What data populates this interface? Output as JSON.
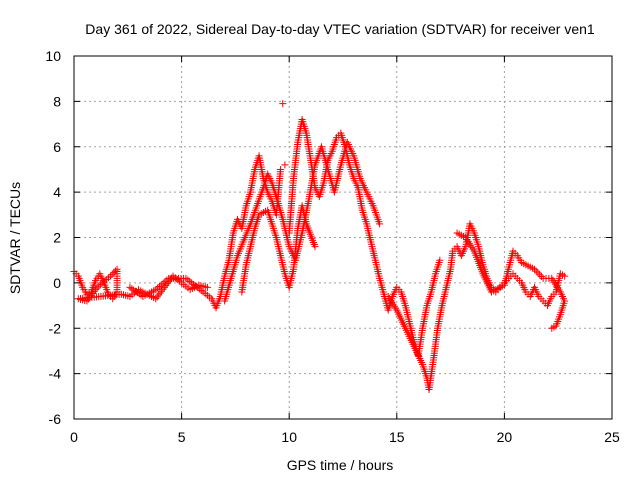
{
  "chart_data": {
    "type": "scatter",
    "title": "Day 361 of 2022, Sidereal Day-to-day VTEC variation (SDTVAR) for receiver ven1",
    "xlabel": "GPS time / hours",
    "ylabel": "SDTVAR / TECUs",
    "xlim": [
      0,
      25
    ],
    "ylim": [
      -6,
      10
    ],
    "x_ticks": [
      0,
      5,
      10,
      15,
      20,
      25
    ],
    "y_ticks": [
      -6,
      -4,
      -2,
      0,
      2,
      4,
      6,
      8,
      10
    ],
    "grid": true,
    "marker": "+",
    "series_color": "#ff0000",
    "series": [
      {
        "name": "ven1",
        "points": [
          [
            0.0,
            0.5
          ],
          [
            0.2,
            0.3
          ],
          [
            0.4,
            -0.2
          ],
          [
            0.6,
            -0.5
          ],
          [
            0.8,
            -0.4
          ],
          [
            1.0,
            0.1
          ],
          [
            1.2,
            0.4
          ],
          [
            1.4,
            0.0
          ],
          [
            1.6,
            -0.5
          ],
          [
            1.8,
            -0.7
          ],
          [
            2.0,
            -0.4
          ],
          [
            2.0,
            0.6
          ],
          [
            1.7,
            0.3
          ],
          [
            1.3,
            0.0
          ],
          [
            1.0,
            -0.3
          ],
          [
            0.6,
            -0.8
          ],
          [
            0.2,
            -0.7
          ],
          [
            2.2,
            -0.5
          ],
          [
            2.6,
            -0.6
          ],
          [
            3.0,
            -0.3
          ],
          [
            3.4,
            -0.5
          ],
          [
            3.8,
            -0.7
          ],
          [
            4.2,
            -0.2
          ],
          [
            4.6,
            0.3
          ],
          [
            5.0,
            0.0
          ],
          [
            5.4,
            -0.3
          ],
          [
            5.8,
            -0.1
          ],
          [
            6.2,
            -0.2
          ],
          [
            2.6,
            -0.2
          ],
          [
            3.2,
            -0.6
          ],
          [
            3.8,
            -0.3
          ],
          [
            4.4,
            0.2
          ],
          [
            5.2,
            0.2
          ],
          [
            6.0,
            -0.4
          ],
          [
            6.4,
            -0.7
          ],
          [
            6.6,
            -1.1
          ],
          [
            6.8,
            -0.6
          ],
          [
            7.0,
            0.3
          ],
          [
            7.2,
            1.0
          ],
          [
            7.4,
            2.2
          ],
          [
            7.6,
            2.8
          ],
          [
            7.8,
            2.4
          ],
          [
            8.0,
            3.4
          ],
          [
            8.2,
            4.0
          ],
          [
            8.4,
            5.0
          ],
          [
            8.6,
            5.6
          ],
          [
            8.8,
            4.6
          ],
          [
            9.0,
            4.0
          ],
          [
            9.2,
            3.6
          ],
          [
            9.4,
            3.0
          ],
          [
            9.6,
            5.0
          ],
          [
            9.7,
            7.9
          ],
          [
            9.8,
            5.2
          ],
          [
            10.0,
            2.2
          ],
          [
            10.2,
            4.6
          ],
          [
            10.4,
            6.2
          ],
          [
            10.6,
            7.2
          ],
          [
            10.8,
            6.6
          ],
          [
            11.0,
            5.4
          ],
          [
            11.2,
            4.2
          ],
          [
            11.4,
            3.8
          ],
          [
            11.6,
            4.4
          ],
          [
            11.8,
            5.4
          ],
          [
            12.0,
            5.8
          ],
          [
            12.2,
            6.4
          ],
          [
            12.4,
            6.6
          ],
          [
            12.6,
            6.0
          ],
          [
            12.8,
            5.2
          ],
          [
            13.0,
            4.6
          ],
          [
            13.2,
            4.2
          ],
          [
            13.4,
            3.2
          ],
          [
            13.6,
            2.6
          ],
          [
            13.8,
            1.8
          ],
          [
            14.0,
            1.0
          ],
          [
            14.2,
            0.2
          ],
          [
            14.4,
            -0.5
          ],
          [
            14.6,
            -1.2
          ],
          [
            14.8,
            -0.6
          ],
          [
            15.0,
            -0.2
          ],
          [
            15.2,
            -0.4
          ],
          [
            15.4,
            -1.0
          ],
          [
            15.6,
            -1.8
          ],
          [
            15.8,
            -2.6
          ],
          [
            16.0,
            -3.2
          ],
          [
            16.2,
            -2.0
          ],
          [
            16.4,
            -1.0
          ],
          [
            16.6,
            -0.4
          ],
          [
            16.8,
            0.4
          ],
          [
            17.0,
            1.0
          ],
          [
            7.0,
            -0.8
          ],
          [
            7.3,
            0.2
          ],
          [
            7.6,
            1.2
          ],
          [
            7.9,
            1.9
          ],
          [
            8.2,
            2.6
          ],
          [
            8.5,
            3.4
          ],
          [
            8.8,
            4.2
          ],
          [
            9.0,
            4.8
          ],
          [
            9.2,
            4.4
          ],
          [
            9.4,
            3.8
          ],
          [
            9.7,
            2.8
          ],
          [
            10.0,
            1.6
          ],
          [
            10.3,
            1.0
          ],
          [
            10.6,
            2.2
          ],
          [
            10.9,
            3.6
          ],
          [
            11.2,
            5.2
          ],
          [
            11.5,
            6.0
          ],
          [
            11.8,
            5.0
          ],
          [
            12.1,
            4.0
          ],
          [
            12.4,
            5.2
          ],
          [
            12.7,
            6.2
          ],
          [
            13.0,
            5.6
          ],
          [
            13.3,
            4.6
          ],
          [
            13.6,
            4.0
          ],
          [
            13.9,
            3.4
          ],
          [
            14.2,
            2.6
          ],
          [
            7.8,
            -0.4
          ],
          [
            8.0,
            0.8
          ],
          [
            8.2,
            1.6
          ],
          [
            8.4,
            2.4
          ],
          [
            8.6,
            3.0
          ],
          [
            9.0,
            3.2
          ],
          [
            9.4,
            2.0
          ],
          [
            9.6,
            1.2
          ],
          [
            9.8,
            0.4
          ],
          [
            10.0,
            -0.2
          ],
          [
            10.2,
            0.6
          ],
          [
            10.4,
            2.4
          ],
          [
            10.6,
            3.4
          ],
          [
            10.8,
            2.6
          ],
          [
            11.2,
            1.6
          ],
          [
            14.6,
            -0.6
          ],
          [
            15.0,
            -1.2
          ],
          [
            15.4,
            -2.0
          ],
          [
            15.8,
            -2.8
          ],
          [
            16.2,
            -3.6
          ],
          [
            16.4,
            -4.2
          ],
          [
            16.5,
            -4.7
          ],
          [
            16.7,
            -3.4
          ],
          [
            16.9,
            -2.0
          ],
          [
            17.1,
            -1.0
          ],
          [
            17.3,
            -0.2
          ],
          [
            17.5,
            0.6
          ],
          [
            17.6,
            1.4
          ],
          [
            17.8,
            1.6
          ],
          [
            18.0,
            1.2
          ],
          [
            18.2,
            1.6
          ],
          [
            18.4,
            2.6
          ],
          [
            18.6,
            2.2
          ],
          [
            18.8,
            1.6
          ],
          [
            19.0,
            0.8
          ],
          [
            19.2,
            0.2
          ],
          [
            19.4,
            -0.2
          ],
          [
            19.6,
            -0.4
          ],
          [
            19.8,
            -0.2
          ],
          [
            20.0,
            0.0
          ],
          [
            20.2,
            0.2
          ],
          [
            20.4,
            0.4
          ],
          [
            20.6,
            0.2
          ],
          [
            20.8,
            0.0
          ],
          [
            21.0,
            -0.4
          ],
          [
            21.2,
            -0.6
          ],
          [
            21.4,
            -0.2
          ],
          [
            21.6,
            -0.6
          ],
          [
            21.8,
            -0.8
          ],
          [
            22.0,
            -1.0
          ],
          [
            22.2,
            -0.6
          ],
          [
            22.4,
            -0.4
          ],
          [
            22.6,
            0.4
          ],
          [
            22.8,
            0.3
          ],
          [
            17.8,
            2.2
          ],
          [
            18.2,
            2.0
          ],
          [
            18.6,
            1.4
          ],
          [
            19.0,
            0.4
          ],
          [
            19.4,
            -0.4
          ],
          [
            20.0,
            -0.1
          ],
          [
            20.4,
            1.4
          ],
          [
            20.6,
            1.2
          ],
          [
            20.8,
            0.9
          ],
          [
            21.2,
            0.7
          ],
          [
            21.4,
            0.6
          ],
          [
            21.8,
            0.2
          ],
          [
            22.2,
            0.2
          ],
          [
            22.6,
            -0.4
          ],
          [
            22.8,
            -0.8
          ],
          [
            22.6,
            -1.4
          ],
          [
            22.4,
            -1.9
          ],
          [
            22.2,
            -2.0
          ]
        ]
      }
    ]
  }
}
